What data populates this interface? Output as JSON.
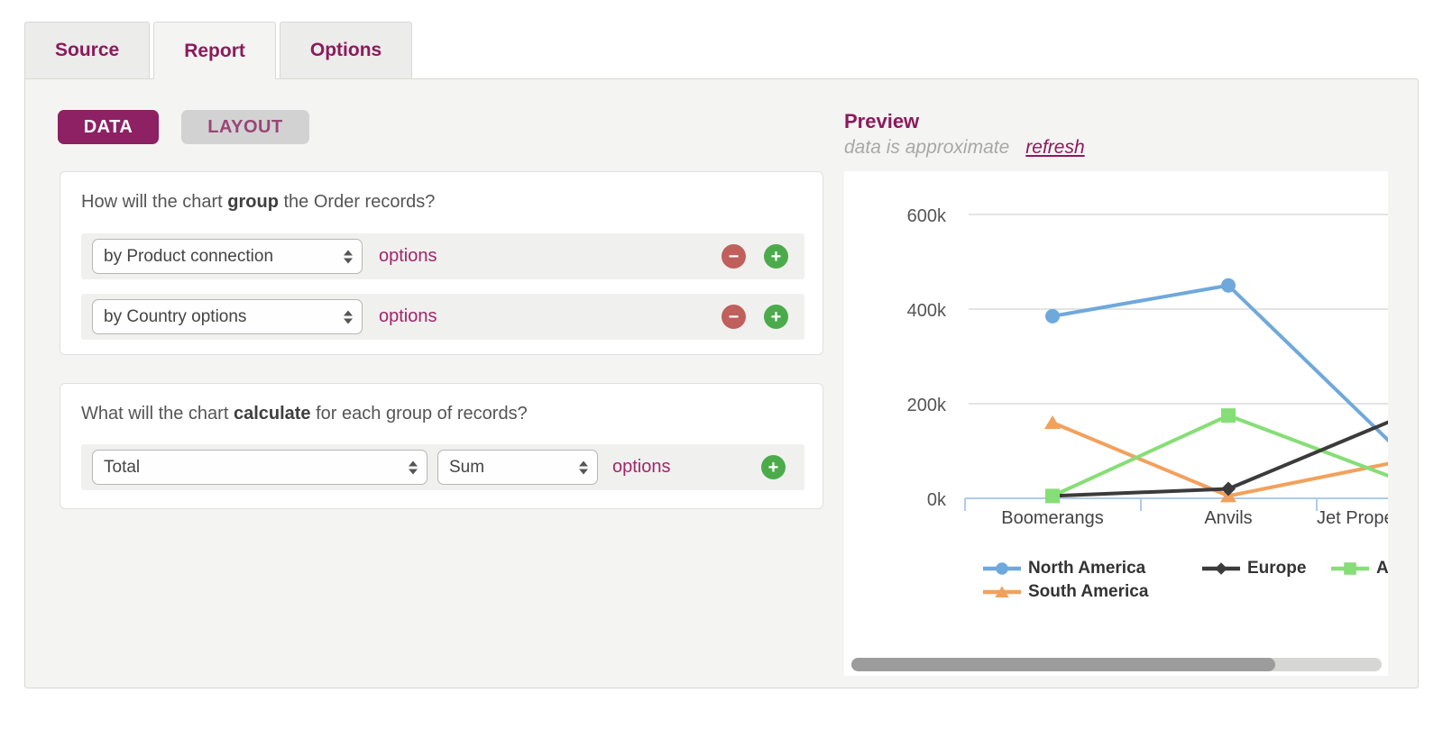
{
  "tabs": [
    {
      "label": "Source",
      "active": false
    },
    {
      "label": "Report",
      "active": true
    },
    {
      "label": "Options",
      "active": false
    }
  ],
  "toolbar": {
    "data_label": "DATA",
    "layout_label": "LAYOUT"
  },
  "group_section": {
    "question_pre": "How will the chart ",
    "question_bold": "group",
    "question_post": " the Order records?",
    "rows": [
      {
        "select_value": "by Product connection",
        "options_label": "options"
      },
      {
        "select_value": "by Country options",
        "options_label": "options"
      }
    ]
  },
  "calculate_section": {
    "question_pre": "What will the chart ",
    "question_bold": "calculate",
    "question_post": " for each group of records?",
    "field_select_value": "Total",
    "method_select_value": "Sum",
    "options_label": "options"
  },
  "icons": {
    "minus": "−",
    "plus": "+"
  },
  "preview": {
    "title": "Preview",
    "subtitle": "data is approximate",
    "refresh_label": "refresh",
    "chart_data": {
      "type": "line",
      "categories": [
        "Boomerangs",
        "Anvils",
        "Jet Propelled"
      ],
      "series": [
        {
          "name": "North America",
          "color": "#6FA8DC",
          "marker": "circle",
          "values": [
            385000,
            450000,
            90000
          ]
        },
        {
          "name": "Europe",
          "color": "#3B3B3B",
          "marker": "diamond",
          "values": [
            5000,
            20000,
            175000
          ]
        },
        {
          "name": "A",
          "color": "#86DE76",
          "marker": "square",
          "values": [
            5000,
            175000,
            35000
          ]
        },
        {
          "name": "South America",
          "color": "#F2A15C",
          "marker": "triangle",
          "values": [
            160000,
            5000,
            80000
          ]
        }
      ],
      "yticks": [
        {
          "label": "600k",
          "value": 600000
        },
        {
          "label": "400k",
          "value": 400000
        },
        {
          "label": "200k",
          "value": 200000
        },
        {
          "label": "0k",
          "value": 0
        }
      ],
      "ylim": [
        0,
        600000
      ],
      "grid": true,
      "clipped_right": true,
      "legend_position": "bottom",
      "legend_rows": [
        [
          "North America",
          "Europe",
          "A"
        ],
        [
          "South America"
        ]
      ]
    }
  },
  "colors": {
    "accent": "#8C1A5C",
    "link": "#A0266C",
    "data_pill_bg": "#8D2163",
    "minus_button": "#C05F5B",
    "plus_button": "#4BAB4B",
    "axis_line": "#AECBE8",
    "gridline": "#DCDCDC"
  }
}
